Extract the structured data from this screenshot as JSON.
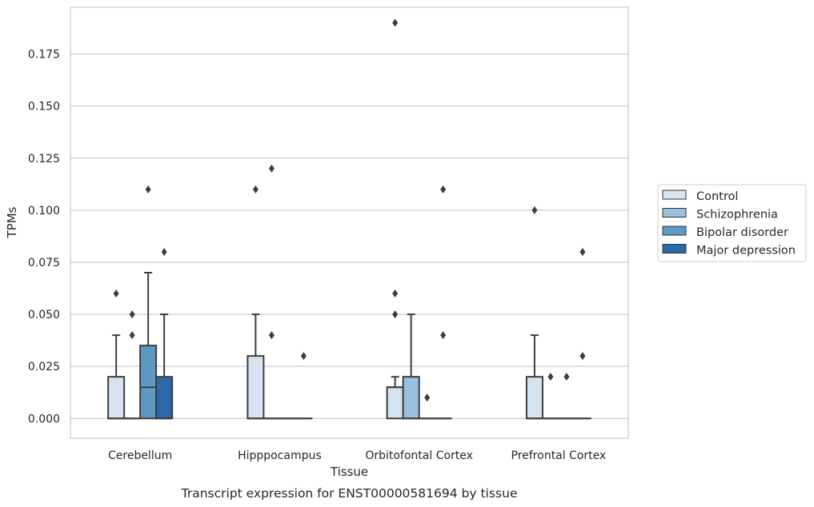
{
  "caption": "Transcript expression for ENST00000581694 by tissue",
  "chart_data": {
    "type": "box",
    "xlabel": "Tissue",
    "ylabel": "TPMs",
    "ylim": [
      -0.0095,
      0.1975
    ],
    "yticks": [
      0.0,
      0.025,
      0.05,
      0.075,
      0.1,
      0.125,
      0.15,
      0.175
    ],
    "ytick_labels": [
      "0.000",
      "0.025",
      "0.050",
      "0.075",
      "0.100",
      "0.125",
      "0.150",
      "0.175"
    ],
    "grid": true,
    "legend_position": "right",
    "categories": [
      "Cerebellum",
      "Hipppocampus",
      "Orbitofontal Cortex",
      "Prefrontal Cortex"
    ],
    "series": [
      {
        "name": "Control",
        "color": "#d6e4f2",
        "boxes": [
          {
            "q1": 0.0,
            "median": 0.0,
            "q3": 0.02,
            "whisker_low": 0.0,
            "whisker_high": 0.04,
            "outliers": [
              0.06
            ]
          },
          {
            "q1": 0.0,
            "median": 0.0,
            "q3": 0.03,
            "whisker_low": 0.0,
            "whisker_high": 0.05,
            "outliers": [
              0.11
            ]
          },
          {
            "q1": 0.0,
            "median": 0.015,
            "q3": 0.015,
            "whisker_low": 0.0,
            "whisker_high": 0.02,
            "outliers": [
              0.05,
              0.06,
              0.19
            ]
          },
          {
            "q1": 0.0,
            "median": 0.0,
            "q3": 0.02,
            "whisker_low": 0.0,
            "whisker_high": 0.04,
            "outliers": [
              0.1
            ]
          }
        ]
      },
      {
        "name": "Schizophrenia",
        "color": "#9ac1dd",
        "boxes": [
          {
            "q1": 0.0,
            "median": 0.0,
            "q3": 0.0,
            "whisker_low": 0.0,
            "whisker_high": 0.0,
            "outliers": [
              0.04,
              0.05
            ]
          },
          {
            "q1": 0.0,
            "median": 0.0,
            "q3": 0.0,
            "whisker_low": 0.0,
            "whisker_high": 0.0,
            "outliers": [
              0.04,
              0.12
            ]
          },
          {
            "q1": 0.0,
            "median": 0.0,
            "q3": 0.02,
            "whisker_low": 0.0,
            "whisker_high": 0.05,
            "outliers": []
          },
          {
            "q1": 0.0,
            "median": 0.0,
            "q3": 0.0,
            "whisker_low": 0.0,
            "whisker_high": 0.0,
            "outliers": [
              0.02
            ]
          }
        ]
      },
      {
        "name": "Bipolar disorder",
        "color": "#5c9ac4",
        "boxes": [
          {
            "q1": 0.0,
            "median": 0.015,
            "q3": 0.035,
            "whisker_low": 0.0,
            "whisker_high": 0.07,
            "outliers": [
              0.11
            ]
          },
          {
            "q1": 0.0,
            "median": 0.0,
            "q3": 0.0,
            "whisker_low": 0.0,
            "whisker_high": 0.0,
            "outliers": []
          },
          {
            "q1": 0.0,
            "median": 0.0,
            "q3": 0.0,
            "whisker_low": 0.0,
            "whisker_high": 0.0,
            "outliers": [
              0.01
            ]
          },
          {
            "q1": 0.0,
            "median": 0.0,
            "q3": 0.0,
            "whisker_low": 0.0,
            "whisker_high": 0.0,
            "outliers": [
              0.02
            ]
          }
        ]
      },
      {
        "name": "Major depression",
        "color": "#2b6aa8",
        "boxes": [
          {
            "q1": 0.0,
            "median": 0.0,
            "q3": 0.02,
            "whisker_low": 0.0,
            "whisker_high": 0.05,
            "outliers": [
              0.08
            ]
          },
          {
            "q1": 0.0,
            "median": 0.0,
            "q3": 0.0,
            "whisker_low": 0.0,
            "whisker_high": 0.0,
            "outliers": [
              0.03
            ]
          },
          {
            "q1": 0.0,
            "median": 0.0,
            "q3": 0.0,
            "whisker_low": 0.0,
            "whisker_high": 0.0,
            "outliers": [
              0.04,
              0.11
            ]
          },
          {
            "q1": 0.0,
            "median": 0.0,
            "q3": 0.0,
            "whisker_low": 0.0,
            "whisker_high": 0.0,
            "outliers": [
              0.03,
              0.08
            ]
          }
        ]
      }
    ]
  }
}
